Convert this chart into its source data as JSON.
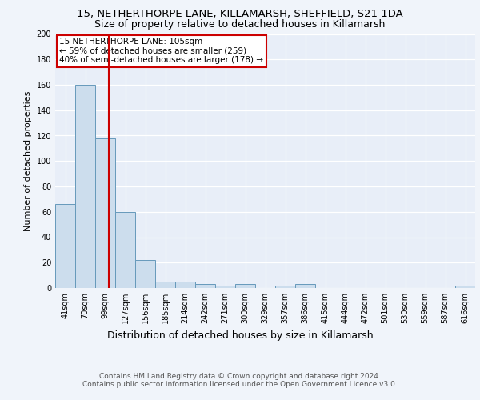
{
  "title1": "15, NETHERTHORPE LANE, KILLAMARSH, SHEFFIELD, S21 1DA",
  "title2": "Size of property relative to detached houses in Killamarsh",
  "xlabel": "Distribution of detached houses by size in Killamarsh",
  "ylabel": "Number of detached properties",
  "bin_labels": [
    "41sqm",
    "70sqm",
    "99sqm",
    "127sqm",
    "156sqm",
    "185sqm",
    "214sqm",
    "242sqm",
    "271sqm",
    "300sqm",
    "329sqm",
    "357sqm",
    "386sqm",
    "415sqm",
    "444sqm",
    "472sqm",
    "501sqm",
    "530sqm",
    "559sqm",
    "587sqm",
    "616sqm"
  ],
  "bar_heights": [
    66,
    160,
    118,
    60,
    22,
    5,
    5,
    3,
    2,
    3,
    0,
    2,
    3,
    0,
    0,
    0,
    0,
    0,
    0,
    0,
    2
  ],
  "bar_color": "#ccdded",
  "bar_edge_color": "#6699bb",
  "vline_pos": 2.18,
  "vline_color": "#cc0000",
  "annotation_text": "15 NETHERTHORPE LANE: 105sqm\n← 59% of detached houses are smaller (259)\n40% of semi-detached houses are larger (178) →",
  "annotation_box_color": "#ffffff",
  "annotation_box_edge": "#cc0000",
  "footer1": "Contains HM Land Registry data © Crown copyright and database right 2024.",
  "footer2": "Contains public sector information licensed under the Open Government Licence v3.0.",
  "ylim": [
    0,
    200
  ],
  "yticks": [
    0,
    20,
    40,
    60,
    80,
    100,
    120,
    140,
    160,
    180,
    200
  ],
  "bg_color": "#f0f4fa",
  "plot_bg_color": "#e8eef8",
  "grid_color": "#ffffff",
  "title1_fontsize": 9.5,
  "title2_fontsize": 9,
  "ylabel_fontsize": 8,
  "xlabel_fontsize": 9,
  "tick_fontsize": 7,
  "footer_fontsize": 6.5,
  "ann_fontsize": 7.5
}
